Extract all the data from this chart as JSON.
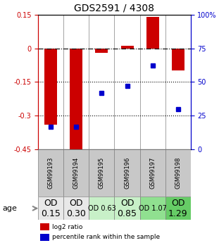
{
  "title": "GDS2591 / 4308",
  "samples": [
    "GSM99193",
    "GSM99194",
    "GSM99195",
    "GSM99196",
    "GSM99197",
    "GSM99198"
  ],
  "log2_ratio": [
    -0.34,
    -0.46,
    -0.02,
    0.01,
    0.14,
    -0.1
  ],
  "percentile_rank": [
    17,
    17,
    42,
    47,
    62,
    30
  ],
  "ylim_left": [
    -0.45,
    0.15
  ],
  "ylim_right": [
    0,
    100
  ],
  "yticks_left": [
    0.15,
    0,
    -0.15,
    -0.3,
    -0.45
  ],
  "yticks_right": [
    100,
    75,
    50,
    25,
    0
  ],
  "hlines_dotted": [
    -0.15,
    -0.3
  ],
  "hline_dashdot": 0,
  "bar_color": "#cc0000",
  "dot_color": "#0000cc",
  "bar_width": 0.5,
  "age_labels": [
    "OD\n0.15",
    "OD\n0.30",
    "OD 0.63",
    "OD\n0.85",
    "OD 1.07",
    "OD\n1.29"
  ],
  "age_bg_colors": [
    "#e8e8e8",
    "#e8e8e8",
    "#c8f0c8",
    "#c8f0c8",
    "#90e090",
    "#66cc66"
  ],
  "age_fontsize": [
    9,
    9,
    7,
    9,
    7,
    9
  ],
  "legend_red": "log2 ratio",
  "legend_blue": "percentile rank within the sample",
  "left_axis_color": "#cc0000",
  "right_axis_color": "#0000cc",
  "bg_color": "#ffffff",
  "plot_bg": "#ffffff",
  "gsm_bg": "#c8c8c8"
}
